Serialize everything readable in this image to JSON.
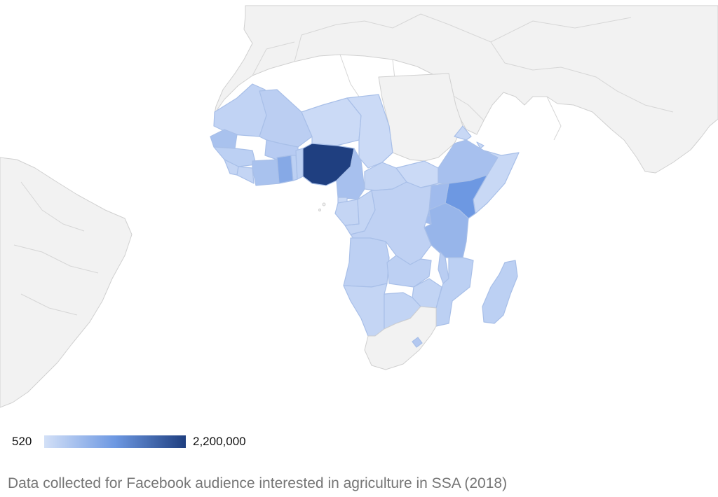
{
  "legend": {
    "min_label": "520",
    "max_label": "2,200,000",
    "color_low": "#d3e0f7",
    "color_mid": "#6d98e2",
    "color_high": "#1f3f80"
  },
  "caption": "Data collected for Facebook audience interested in agriculture in SSA (2018)",
  "colors": {
    "no_data": "#f2f2f2",
    "no_data_border": "#d0d0d0",
    "ocean": "#ffffff"
  },
  "countries": [
    {
      "name": "Mauritania",
      "color": "#c1d3f4"
    },
    {
      "name": "Mali",
      "color": "#bbcef2"
    },
    {
      "name": "Niger",
      "color": "#cbdaf6"
    },
    {
      "name": "Chad",
      "color": "#cbdaf6"
    },
    {
      "name": "Senegal",
      "color": "#a9c2ee"
    },
    {
      "name": "Guinea",
      "color": "#bcd0f3"
    },
    {
      "name": "Sierra Leone",
      "color": "#c4d5f4"
    },
    {
      "name": "Liberia",
      "color": "#c4d5f4"
    },
    {
      "name": "Cote d'Ivoire",
      "color": "#a9c2ee"
    },
    {
      "name": "Burkina Faso",
      "color": "#b7cbf2"
    },
    {
      "name": "Ghana",
      "color": "#86a9e6"
    },
    {
      "name": "Togo",
      "color": "#bcd0f3"
    },
    {
      "name": "Benin",
      "color": "#bcd0f3"
    },
    {
      "name": "Nigeria",
      "color": "#1f3f80"
    },
    {
      "name": "Cameroon",
      "color": "#a7c0ee"
    },
    {
      "name": "Central African Republic",
      "color": "#c4d5f4"
    },
    {
      "name": "South Sudan",
      "color": "#cbdaf6"
    },
    {
      "name": "Ethiopia",
      "color": "#a7c0ee"
    },
    {
      "name": "Somalia",
      "color": "#c8d8f5"
    },
    {
      "name": "Eritrea",
      "color": "#c8d8f5"
    },
    {
      "name": "Djibouti",
      "color": "#c8d8f5"
    },
    {
      "name": "Kenya",
      "color": "#6d98e2"
    },
    {
      "name": "Uganda",
      "color": "#a0bbed"
    },
    {
      "name": "Rwanda",
      "color": "#a0bbed"
    },
    {
      "name": "Burundi",
      "color": "#a0bbed"
    },
    {
      "name": "Tanzania",
      "color": "#97b5ea"
    },
    {
      "name": "Equatorial Guinea",
      "color": "#c8d8f5"
    },
    {
      "name": "Gabon",
      "color": "#c4d5f4"
    },
    {
      "name": "Republic of the Congo",
      "color": "#c4d5f4"
    },
    {
      "name": "DR Congo",
      "color": "#bfd1f3"
    },
    {
      "name": "Angola",
      "color": "#bdd0f3"
    },
    {
      "name": "Zambia",
      "color": "#bdd0f3"
    },
    {
      "name": "Malawi",
      "color": "#b9cdf2"
    },
    {
      "name": "Mozambique",
      "color": "#bcd0f3"
    },
    {
      "name": "Zimbabwe",
      "color": "#c2d4f4"
    },
    {
      "name": "Namibia",
      "color": "#c4d5f4"
    },
    {
      "name": "Botswana",
      "color": "#c2d4f4"
    },
    {
      "name": "Lesotho",
      "color": "#b3c8f0"
    },
    {
      "name": "Madagascar",
      "color": "#bcd0f3"
    }
  ]
}
